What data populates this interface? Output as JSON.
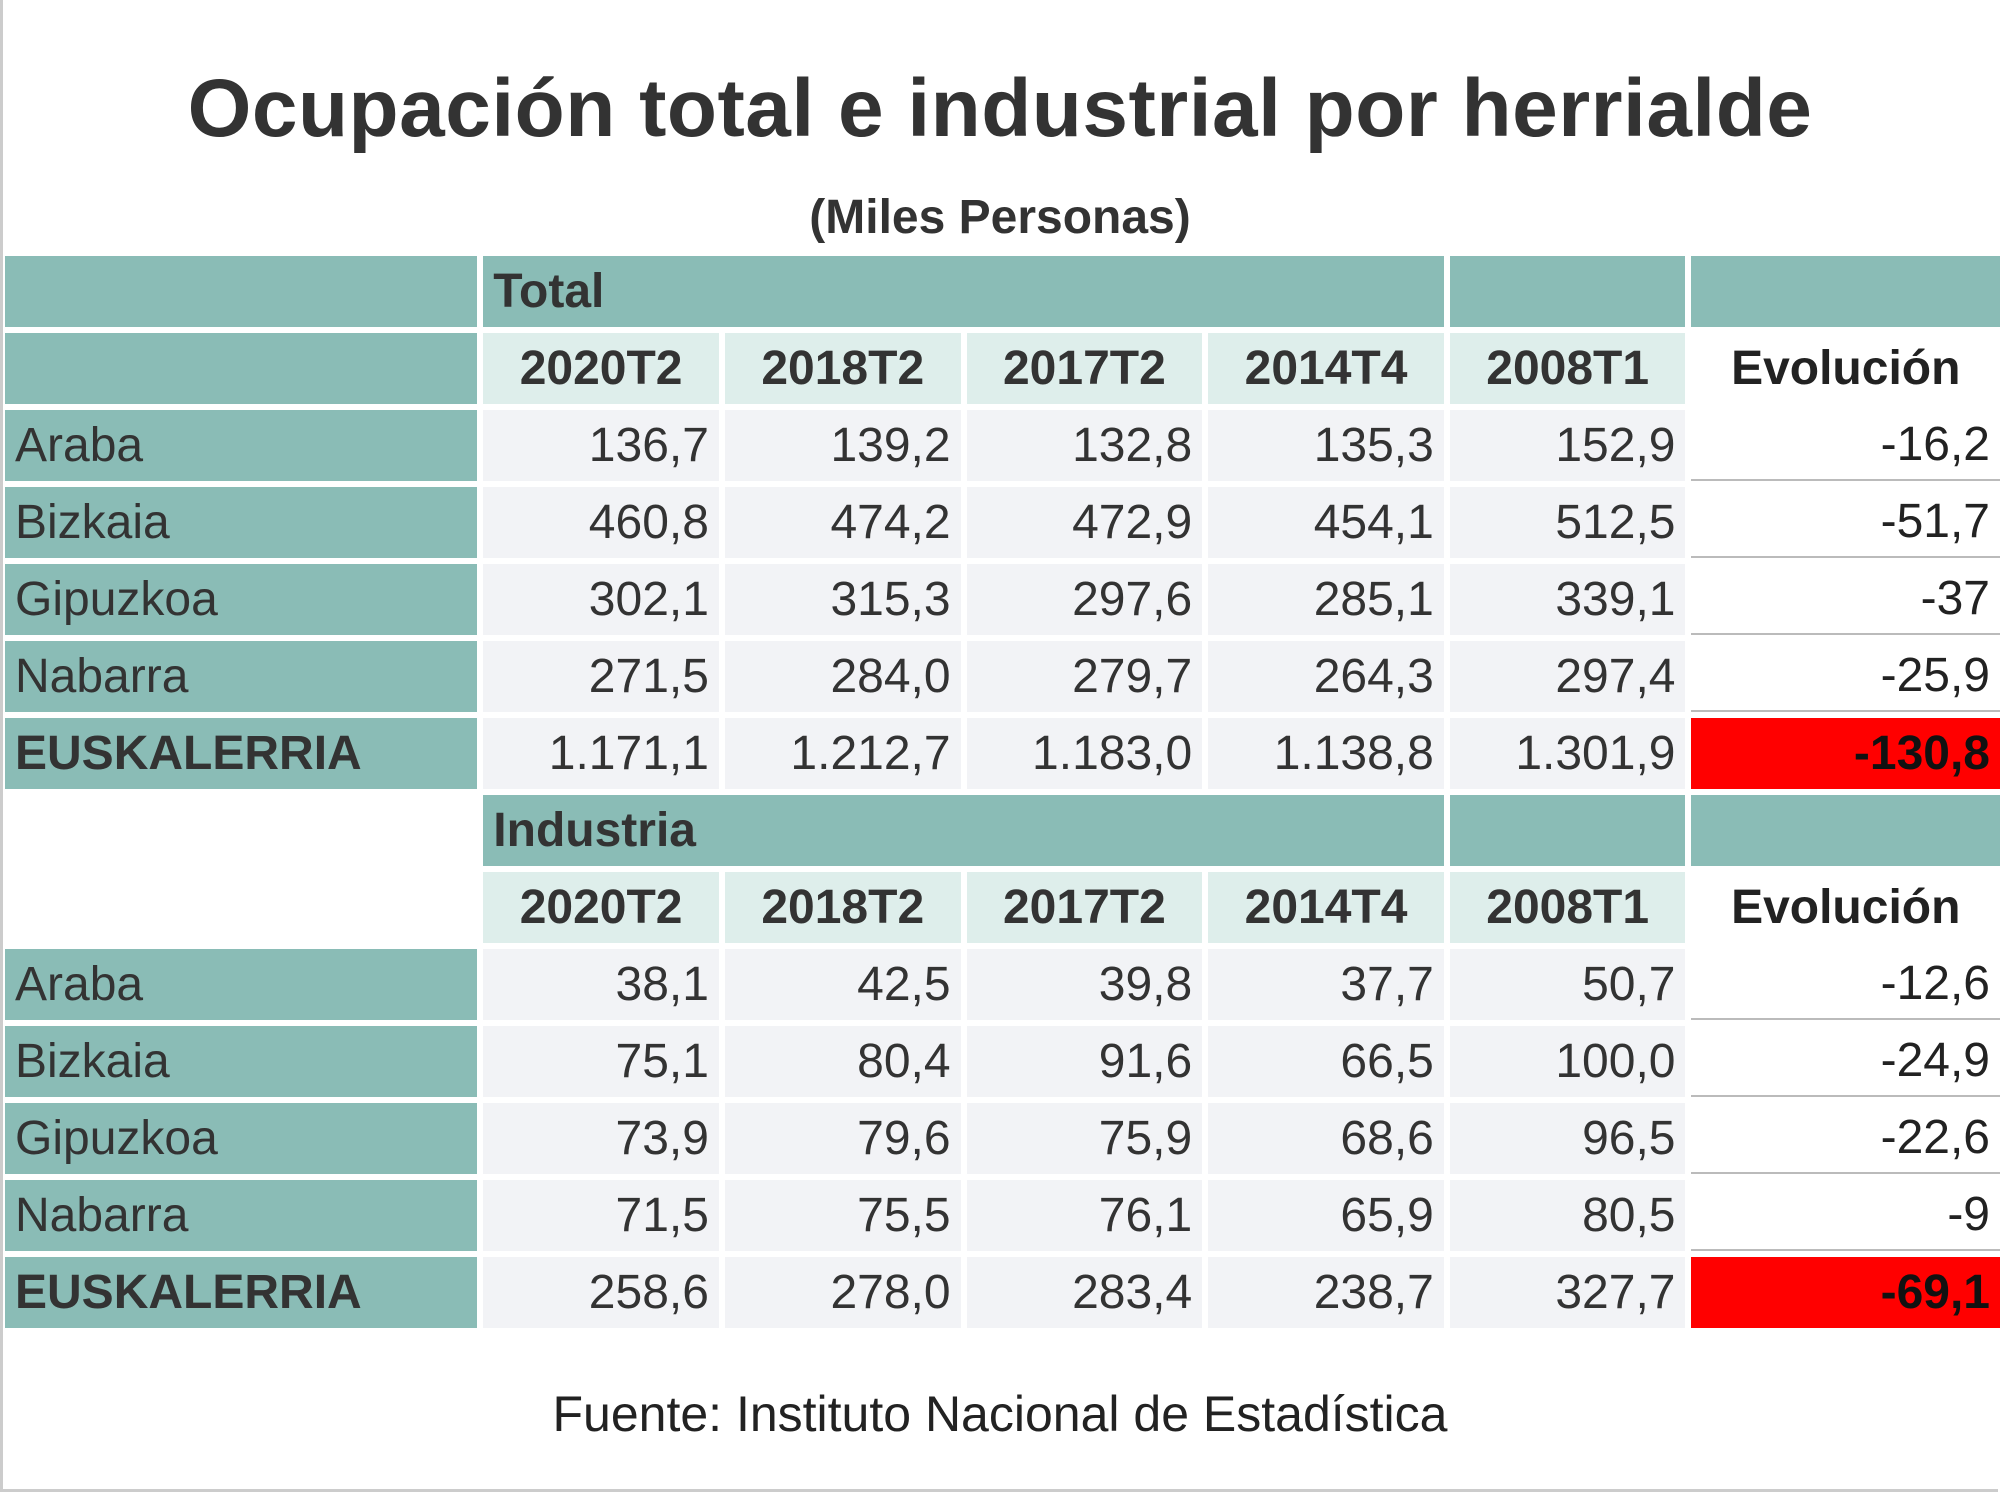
{
  "title": "Ocupación total e industrial por herrialde",
  "subtitle": "(Miles Personas)",
  "periods": [
    "2020T2",
    "2018T2",
    "2017T2",
    "2014T4",
    "2008T1"
  ],
  "evolution_label": "Evolución",
  "highlight_color": "#ff0000",
  "header_color": "#8abcb6",
  "sections": [
    {
      "label": "Total",
      "rows": [
        {
          "name": "Araba",
          "values": [
            "136,7",
            "139,2",
            "132,8",
            "135,3",
            "152,9"
          ],
          "evolution": "-16,2"
        },
        {
          "name": "Bizkaia",
          "values": [
            "460,8",
            "474,2",
            "472,9",
            "454,1",
            "512,5"
          ],
          "evolution": "-51,7"
        },
        {
          "name": "Gipuzkoa",
          "values": [
            "302,1",
            "315,3",
            "297,6",
            "285,1",
            "339,1"
          ],
          "evolution": "-37"
        },
        {
          "name": "Nabarra",
          "values": [
            "271,5",
            "284,0",
            "279,7",
            "264,3",
            "297,4"
          ],
          "evolution": "-25,9"
        },
        {
          "name": "EUSKALERRIA",
          "values": [
            "1.171,1",
            "1.212,7",
            "1.183,0",
            "1.138,8",
            "1.301,9"
          ],
          "evolution": "-130,8",
          "total": true
        }
      ]
    },
    {
      "label": "Industria",
      "rows": [
        {
          "name": "Araba",
          "values": [
            "38,1",
            "42,5",
            "39,8",
            "37,7",
            "50,7"
          ],
          "evolution": "-12,6"
        },
        {
          "name": "Bizkaia",
          "values": [
            "75,1",
            "80,4",
            "91,6",
            "66,5",
            "100,0"
          ],
          "evolution": "-24,9"
        },
        {
          "name": "Gipuzkoa",
          "values": [
            "73,9",
            "79,6",
            "75,9",
            "68,6",
            "96,5"
          ],
          "evolution": "-22,6"
        },
        {
          "name": "Nabarra",
          "values": [
            "71,5",
            "75,5",
            "76,1",
            "65,9",
            "80,5"
          ],
          "evolution": "-9"
        },
        {
          "name": "EUSKALERRIA",
          "values": [
            "258,6",
            "278,0",
            "283,4",
            "238,7",
            "327,7"
          ],
          "evolution": "-69,1",
          "total": true
        }
      ]
    }
  ],
  "source": "Fuente: Instituto Nacional de Estadística"
}
